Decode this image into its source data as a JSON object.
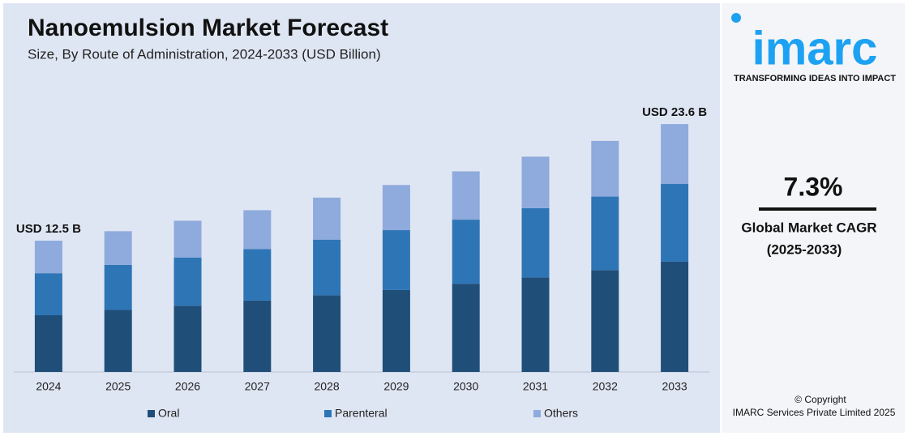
{
  "chart_data": {
    "type": "stacked_bar",
    "title": "Nanoemulsion Market Forecast",
    "subtitle": "Size, By Route of Administration, 2024-2033 (USD Billion)",
    "categories": [
      "2024",
      "2025",
      "2026",
      "2027",
      "2028",
      "2029",
      "2030",
      "2031",
      "2032",
      "2033"
    ],
    "series": [
      {
        "name": "Oral",
        "color": "#1f4e79",
        "values": [
          5.4,
          5.9,
          6.3,
          6.8,
          7.3,
          7.8,
          8.4,
          9.0,
          9.7,
          10.5
        ]
      },
      {
        "name": "Parenteral",
        "color": "#2e75b6",
        "values": [
          4.0,
          4.3,
          4.6,
          4.9,
          5.3,
          5.7,
          6.1,
          6.6,
          7.0,
          7.4
        ]
      },
      {
        "name": "Others",
        "color": "#8faadc",
        "values": [
          3.1,
          3.2,
          3.5,
          3.7,
          4.0,
          4.3,
          4.6,
          4.9,
          5.3,
          5.7
        ]
      }
    ],
    "annotations": [
      "USD 12.5 B",
      "USD 23.6 B"
    ],
    "ylim": [
      0,
      25
    ],
    "legend": "bottom"
  },
  "sidebar": {
    "logo": "imarc",
    "tagline": "TRANSFORMING IDEAS INTO IMPACT",
    "cagr": "7.3%",
    "cagr_label": "Global Market CAGR",
    "cagr_period": "(2025-2033)",
    "copyright": "© Copyright",
    "company": "IMARC Services Private Limited 2025"
  }
}
